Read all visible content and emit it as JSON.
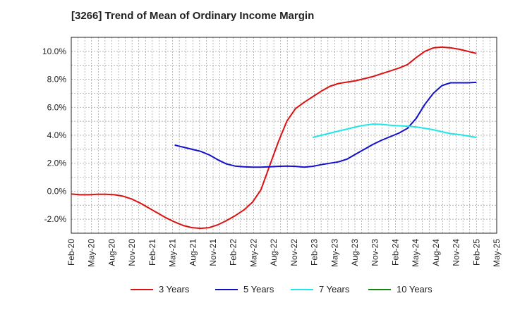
{
  "chart_data": {
    "type": "line",
    "title": "[3266]  Trend of Mean of Ordinary Income Margin",
    "xlabel": "",
    "ylabel": "",
    "ylim": [
      -3,
      11
    ],
    "yticks": [
      10,
      8,
      6,
      4,
      2,
      0,
      -2
    ],
    "ytick_labels": [
      "10.0%",
      "8.0%",
      "6.0%",
      "4.0%",
      "2.0%",
      "0.0%",
      "-2.0%"
    ],
    "x_tick_labels": [
      "Feb-20",
      "May-20",
      "Aug-20",
      "Nov-20",
      "Feb-21",
      "May-21",
      "Aug-21",
      "Nov-21",
      "Feb-22",
      "May-22",
      "Aug-22",
      "Nov-22",
      "Feb-23",
      "May-23",
      "Aug-23",
      "Nov-23",
      "Feb-24",
      "May-24",
      "Aug-24",
      "Nov-24",
      "Feb-25",
      "May-25"
    ],
    "grid": true,
    "legend_position": "bottom",
    "series": [
      {
        "name": "3 Years",
        "color": "#dd1111",
        "points": [
          [
            0,
            -0.2
          ],
          [
            1,
            -0.25
          ],
          [
            2,
            -0.25
          ],
          [
            3,
            -0.22
          ],
          [
            4,
            -0.22
          ],
          [
            5,
            -0.25
          ],
          [
            6,
            -0.35
          ],
          [
            7,
            -0.55
          ],
          [
            8,
            -0.85
          ],
          [
            9,
            -1.2
          ],
          [
            10,
            -1.55
          ],
          [
            11,
            -1.9
          ],
          [
            12,
            -2.2
          ],
          [
            13,
            -2.45
          ],
          [
            14,
            -2.6
          ],
          [
            15,
            -2.65
          ],
          [
            16,
            -2.6
          ],
          [
            17,
            -2.4
          ],
          [
            18,
            -2.1
          ],
          [
            19,
            -1.75
          ],
          [
            20,
            -1.35
          ],
          [
            21,
            -0.8
          ],
          [
            22,
            0.1
          ],
          [
            23,
            1.8
          ],
          [
            24,
            3.5
          ],
          [
            25,
            5.0
          ],
          [
            26,
            5.9
          ],
          [
            27,
            6.35
          ],
          [
            28,
            6.75
          ],
          [
            29,
            7.15
          ],
          [
            30,
            7.5
          ],
          [
            31,
            7.7
          ],
          [
            32,
            7.8
          ],
          [
            33,
            7.9
          ],
          [
            34,
            8.05
          ],
          [
            35,
            8.2
          ],
          [
            36,
            8.4
          ],
          [
            37,
            8.6
          ],
          [
            38,
            8.8
          ],
          [
            39,
            9.05
          ],
          [
            40,
            9.55
          ],
          [
            41,
            10.0
          ],
          [
            42,
            10.25
          ],
          [
            43,
            10.3
          ],
          [
            44,
            10.25
          ],
          [
            45,
            10.15
          ],
          [
            46,
            10.0
          ],
          [
            47,
            9.85
          ]
        ]
      },
      {
        "name": "5 Years",
        "color": "#1111cc",
        "points": [
          [
            12,
            3.3
          ],
          [
            13,
            3.15
          ],
          [
            14,
            3.0
          ],
          [
            15,
            2.85
          ],
          [
            16,
            2.6
          ],
          [
            17,
            2.25
          ],
          [
            18,
            1.95
          ],
          [
            19,
            1.8
          ],
          [
            20,
            1.75
          ],
          [
            21,
            1.72
          ],
          [
            22,
            1.72
          ],
          [
            23,
            1.75
          ],
          [
            24,
            1.78
          ],
          [
            25,
            1.8
          ],
          [
            26,
            1.78
          ],
          [
            27,
            1.72
          ],
          [
            28,
            1.78
          ],
          [
            29,
            1.9
          ],
          [
            30,
            2.0
          ],
          [
            31,
            2.1
          ],
          [
            32,
            2.3
          ],
          [
            33,
            2.65
          ],
          [
            34,
            3.0
          ],
          [
            35,
            3.35
          ],
          [
            36,
            3.65
          ],
          [
            37,
            3.9
          ],
          [
            38,
            4.15
          ],
          [
            39,
            4.5
          ],
          [
            40,
            5.2
          ],
          [
            41,
            6.2
          ],
          [
            42,
            7.0
          ],
          [
            43,
            7.55
          ],
          [
            44,
            7.75
          ],
          [
            45,
            7.75
          ],
          [
            46,
            7.75
          ],
          [
            47,
            7.78
          ]
        ]
      },
      {
        "name": "7 Years",
        "color": "#22e5e5",
        "points": [
          [
            28,
            3.85
          ],
          [
            29,
            4.0
          ],
          [
            30,
            4.15
          ],
          [
            31,
            4.3
          ],
          [
            32,
            4.45
          ],
          [
            33,
            4.6
          ],
          [
            34,
            4.72
          ],
          [
            35,
            4.8
          ],
          [
            36,
            4.78
          ],
          [
            37,
            4.72
          ],
          [
            38,
            4.68
          ],
          [
            39,
            4.65
          ],
          [
            40,
            4.6
          ],
          [
            41,
            4.5
          ],
          [
            42,
            4.4
          ],
          [
            43,
            4.25
          ],
          [
            44,
            4.12
          ],
          [
            45,
            4.05
          ],
          [
            46,
            3.95
          ],
          [
            47,
            3.85
          ]
        ]
      },
      {
        "name": "10 Years",
        "color": "#118811",
        "points": []
      }
    ]
  }
}
